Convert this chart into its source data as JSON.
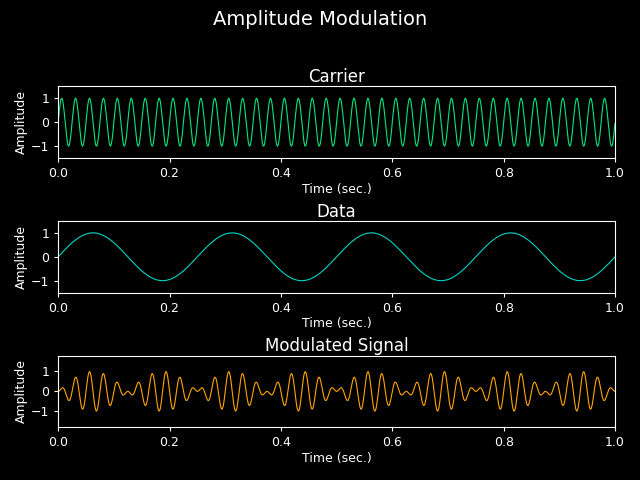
{
  "title": "Amplitude Modulation",
  "background_color": "#000000",
  "text_color": "#ffffff",
  "subplot_titles": [
    "Carrier",
    "Data",
    "Modulated Signal"
  ],
  "xlabel": "Time (sec.)",
  "ylabel": "Amplitude",
  "xlim": [
    0.0,
    1.0
  ],
  "carrier_ylim": [
    -1.5,
    1.5
  ],
  "data_ylim": [
    -1.5,
    1.5
  ],
  "mod_ylim": [
    -1.8,
    1.8
  ],
  "carrier_color": "#00e87a",
  "data_color": "#00d4c8",
  "modulated_color": "#ffa500",
  "carrier_freq": 40,
  "data_freq": 4,
  "sample_rate": 5000,
  "duration": 1.0,
  "line_width": 0.8,
  "yticks": [
    -1,
    0,
    1
  ],
  "xticks": [
    0.0,
    0.2,
    0.4,
    0.6,
    0.8,
    1.0
  ],
  "title_fontsize": 14,
  "subplot_title_fontsize": 12,
  "axis_label_fontsize": 9,
  "tick_fontsize": 9,
  "fig_width": 6.4,
  "fig_height": 4.8,
  "dpi": 100
}
